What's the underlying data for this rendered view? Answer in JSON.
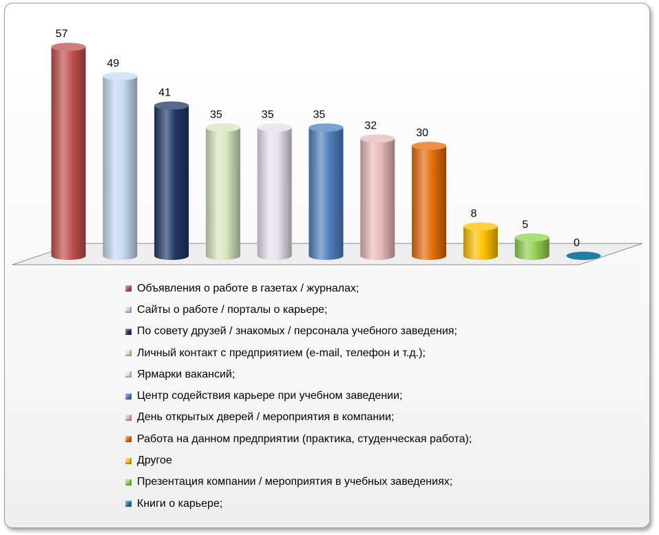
{
  "chart_data": {
    "type": "bar",
    "title": "",
    "xlabel": "",
    "ylabel": "",
    "ylim": [
      0,
      60
    ],
    "grid": false,
    "legend_position": "bottom",
    "categories": [
      "Объявления о работе в газетах / журналах;",
      "Сайты о работе / порталы о карьере;",
      "По совету друзей / знакомых / персонала учебного заведения;",
      "Личный контакт с предприятием (e-mail, телефон и т.д.);",
      "Ярмарки вакансий;",
      "Центр содействия карьере при учебном заведении;",
      "День открытых дверей / мероприятия в компании;",
      "Работа на данном предприятии (практика, студенческая работа);",
      "Другое",
      "Презентация компании / мероприятия в учебных заведениях;",
      "Книги о карьере;"
    ],
    "values": [
      57,
      49,
      41,
      35,
      35,
      35,
      32,
      30,
      8,
      5,
      0
    ],
    "colors": [
      "#c0504d",
      "#c6d9f1",
      "#1f3864",
      "#d7e4bd",
      "#e6e0ec",
      "#4f81bd",
      "#e6b9b8",
      "#e36c09",
      "#ffc000",
      "#92d050",
      "#1f7ea8"
    ]
  }
}
